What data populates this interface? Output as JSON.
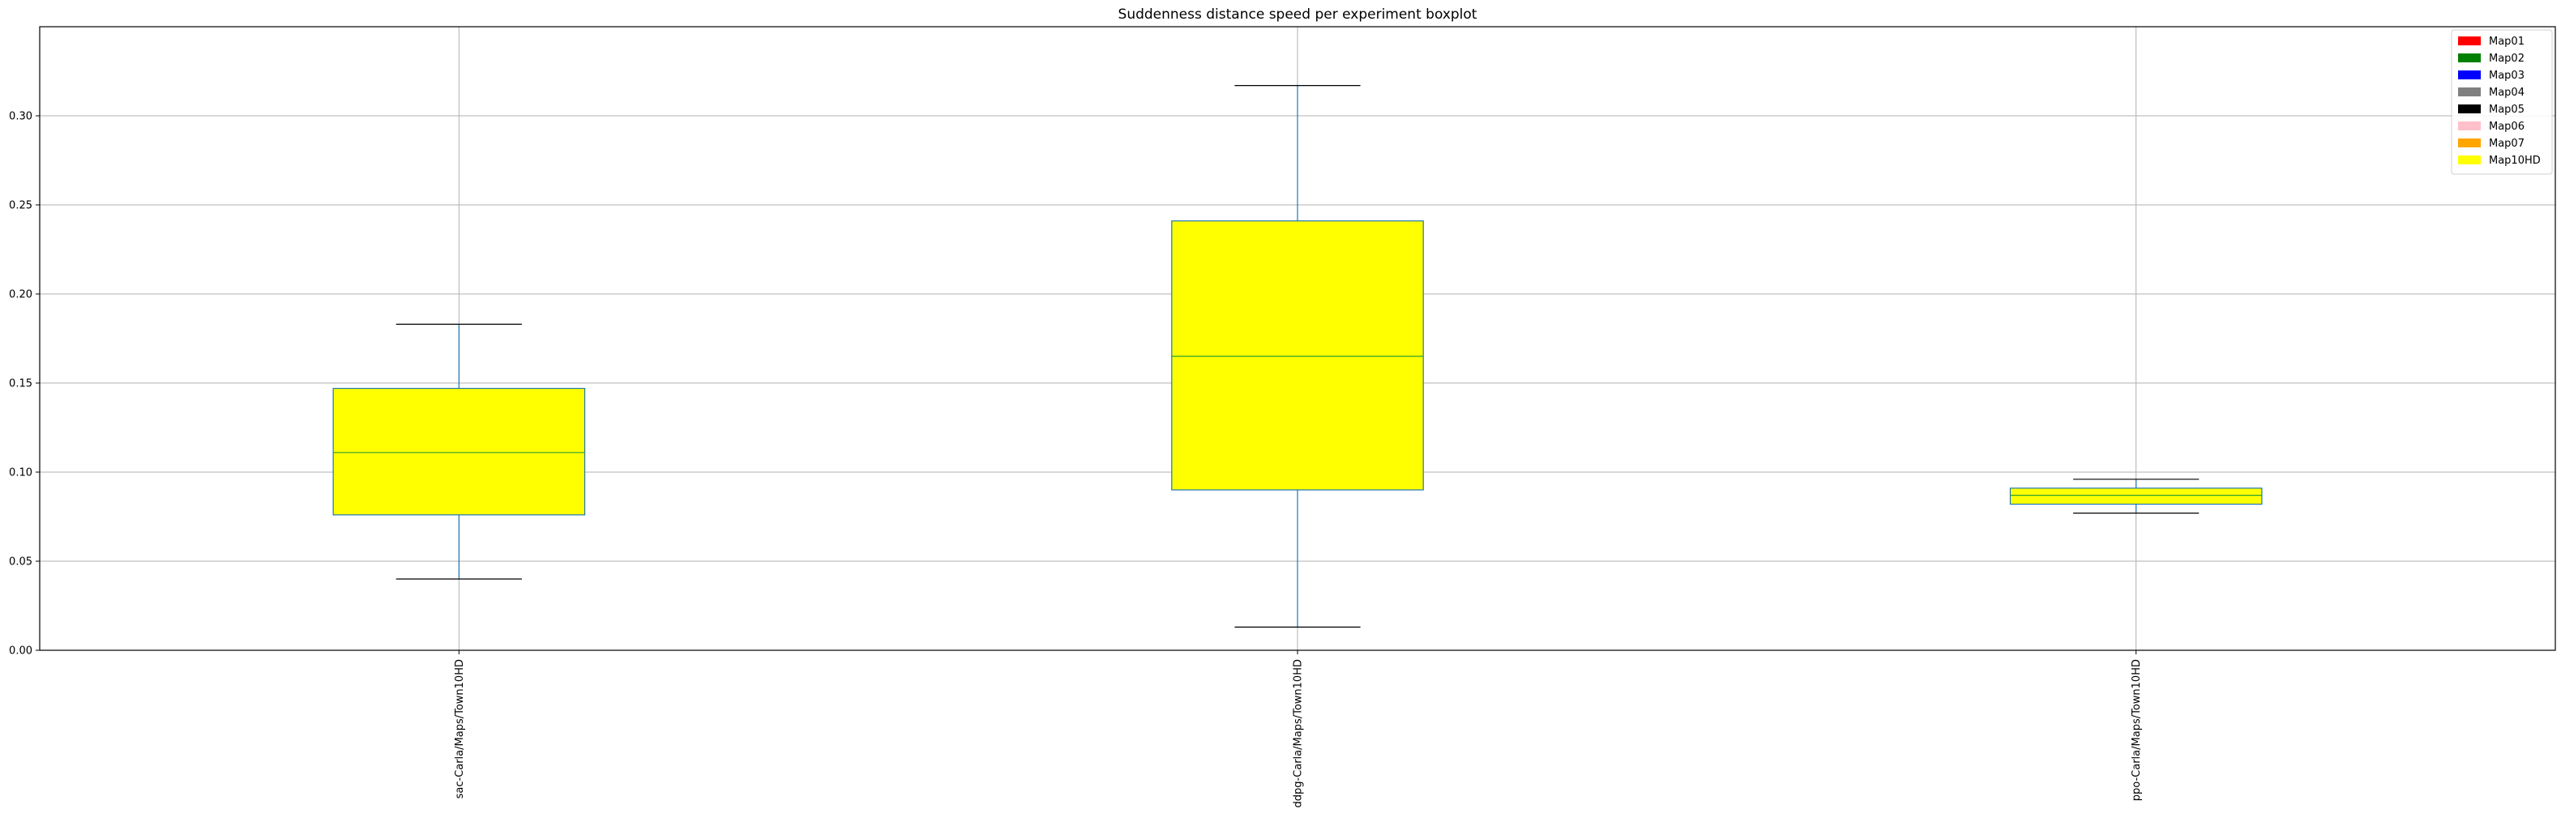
{
  "chart_data": {
    "type": "boxplot",
    "title": "Suddenness distance speed per experiment boxplot",
    "xlabel": "",
    "ylabel": "",
    "ylim": [
      0.0,
      0.35
    ],
    "yticks": [
      "0.00",
      "0.05",
      "0.10",
      "0.15",
      "0.20",
      "0.25",
      "0.30"
    ],
    "grid": true,
    "categories": [
      "sac-Carla/Maps/Town10HD",
      "ddpg-Carla/Maps/Town10HD",
      "ppo-Carla/Maps/Town10HD"
    ],
    "boxes": [
      {
        "whisker_low": 0.04,
        "q1": 0.076,
        "median": 0.111,
        "q3": 0.147,
        "whisker_high": 0.183
      },
      {
        "whisker_low": 0.013,
        "q1": 0.09,
        "median": 0.165,
        "q3": 0.241,
        "whisker_high": 0.317
      },
      {
        "whisker_low": 0.077,
        "q1": 0.082,
        "median": 0.087,
        "q3": 0.091,
        "whisker_high": 0.096
      }
    ],
    "box_fill": "#ffff00",
    "box_edge": "#1f77b4",
    "median_color": "#2ca02c",
    "legend": {
      "placement": "top-right",
      "entries": [
        {
          "label": "Map01",
          "color": "#ff0000"
        },
        {
          "label": "Map02",
          "color": "#008000"
        },
        {
          "label": "Map03",
          "color": "#0000ff"
        },
        {
          "label": "Map04",
          "color": "#808080"
        },
        {
          "label": "Map05",
          "color": "#000000"
        },
        {
          "label": "Map06",
          "color": "#ffc0cb"
        },
        {
          "label": "Map07",
          "color": "#ffa500"
        },
        {
          "label": "Map10HD",
          "color": "#ffff00"
        }
      ]
    }
  }
}
